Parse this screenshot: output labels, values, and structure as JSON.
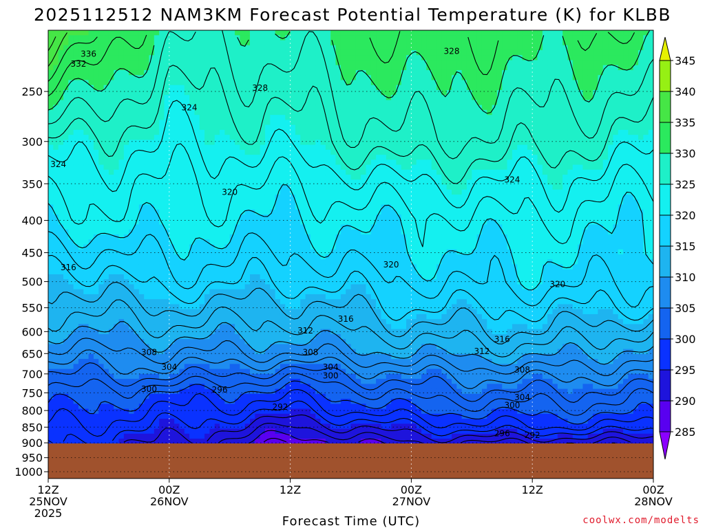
{
  "title": "2025112512 NAM3KM Forecast Potential Temperature (K) for KLBB",
  "credit": "coolwx.com/modelts",
  "chart_data": {
    "type": "heatmap",
    "title": "2025112512 NAM3KM Forecast Potential Temperature (K) for KLBB",
    "xlabel": "Forecast Time (UTC)",
    "ylabel": "",
    "y_scale": "log-pressure, inverted",
    "x_ticks": [
      {
        "hours": 0,
        "lines": [
          "12Z",
          "25NOV",
          "2025"
        ]
      },
      {
        "hours": 12,
        "lines": [
          "00Z",
          "26NOV"
        ]
      },
      {
        "hours": 24,
        "lines": [
          "12Z"
        ]
      },
      {
        "hours": 36,
        "lines": [
          "00Z",
          "27NOV"
        ]
      },
      {
        "hours": 48,
        "lines": [
          "12Z"
        ]
      },
      {
        "hours": 60,
        "lines": [
          "00Z",
          "28NOV"
        ]
      }
    ],
    "x_range_hours": [
      0,
      60
    ],
    "y_ticks": [
      250,
      300,
      350,
      400,
      450,
      500,
      550,
      600,
      650,
      700,
      750,
      800,
      850,
      900,
      950,
      1000
    ],
    "y_range_hPa": [
      200,
      1025
    ],
    "grid": true,
    "terrain_pressure_hPa": 902,
    "colorbar": {
      "levels": [
        280,
        285,
        290,
        295,
        300,
        305,
        310,
        315,
        320,
        325,
        330,
        335,
        340,
        345,
        350
      ],
      "colors": [
        "#8B00FF",
        "#5900F0",
        "#1E14DC",
        "#0A32FF",
        "#1464F0",
        "#1E8CF0",
        "#1EB4F0",
        "#14D2FF",
        "#14F0F0",
        "#1EF0C8",
        "#2BE95E",
        "#46E646",
        "#96F014",
        "#E6F000"
      ],
      "labels": [
        285,
        290,
        295,
        300,
        305,
        310,
        315,
        320,
        325,
        330,
        335,
        340,
        345
      ]
    },
    "contour_profiles": {
      "levels_hPa": [
        250,
        300,
        350,
        400,
        450,
        500,
        550,
        600,
        650,
        700,
        750,
        800,
        850,
        900
      ],
      "times_hours": [
        0,
        12,
        24,
        36,
        48,
        60
      ],
      "theta_K": [
        [
          332,
          326,
          327,
          330,
          329,
          328
        ],
        [
          326,
          324,
          325,
          328,
          327,
          325
        ],
        [
          323,
          322,
          322,
          324,
          324,
          322
        ],
        [
          321,
          321,
          320,
          321,
          322,
          320
        ],
        [
          317,
          319,
          318,
          320,
          320,
          320
        ],
        [
          314,
          317,
          316,
          318,
          319,
          318
        ],
        [
          312,
          314,
          313,
          316,
          316,
          316
        ],
        [
          310,
          311,
          311,
          313,
          314,
          312
        ],
        [
          307,
          308,
          308,
          310,
          311,
          309
        ],
        [
          304,
          305,
          303,
          306,
          307,
          306
        ],
        [
          302,
          300,
          299,
          303,
          304,
          303
        ],
        [
          300,
          298,
          296,
          300,
          301,
          301
        ],
        [
          298,
          296,
          292,
          296,
          298,
          297
        ],
        [
          296,
          294,
          288,
          292,
          292,
          292
        ]
      ]
    },
    "contour_labels": [
      {
        "text": "336",
        "hours": 4,
        "hPa": 218
      },
      {
        "text": "332",
        "hours": 3,
        "hPa": 226
      },
      {
        "text": "328",
        "hours": 40,
        "hPa": 216
      },
      {
        "text": "328",
        "hours": 21,
        "hPa": 247
      },
      {
        "text": "324",
        "hours": 14,
        "hPa": 265
      },
      {
        "text": "324",
        "hours": 1,
        "hPa": 326
      },
      {
        "text": "324",
        "hours": 46,
        "hPa": 345
      },
      {
        "text": "320",
        "hours": 18,
        "hPa": 361
      },
      {
        "text": "320",
        "hours": 34,
        "hPa": 470
      },
      {
        "text": "320",
        "hours": 50.5,
        "hPa": 505
      },
      {
        "text": "316",
        "hours": 2,
        "hPa": 475
      },
      {
        "text": "316",
        "hours": 29.5,
        "hPa": 573
      },
      {
        "text": "316",
        "hours": 45,
        "hPa": 617
      },
      {
        "text": "312",
        "hours": 25.5,
        "hPa": 598
      },
      {
        "text": "312",
        "hours": 43,
        "hPa": 645
      },
      {
        "text": "308",
        "hours": 10,
        "hPa": 647
      },
      {
        "text": "308",
        "hours": 26,
        "hPa": 647
      },
      {
        "text": "308",
        "hours": 47,
        "hPa": 690
      },
      {
        "text": "304",
        "hours": 12,
        "hPa": 683
      },
      {
        "text": "304",
        "hours": 28,
        "hPa": 683
      },
      {
        "text": "304",
        "hours": 47,
        "hPa": 763
      },
      {
        "text": "300",
        "hours": 28,
        "hPa": 705
      },
      {
        "text": "300",
        "hours": 10,
        "hPa": 740
      },
      {
        "text": "300",
        "hours": 46,
        "hPa": 785
      },
      {
        "text": "296",
        "hours": 17,
        "hPa": 742
      },
      {
        "text": "296",
        "hours": 45,
        "hPa": 870
      },
      {
        "text": "292",
        "hours": 23,
        "hPa": 790
      },
      {
        "text": "292",
        "hours": 48,
        "hPa": 875
      }
    ]
  },
  "icons": [
    "colorbar-up-arrow",
    "colorbar-down-arrow"
  ],
  "colors": {
    "terrain": "#A0522D",
    "contour": "#000000",
    "grid": "#000000",
    "credit": "#e0192a"
  }
}
